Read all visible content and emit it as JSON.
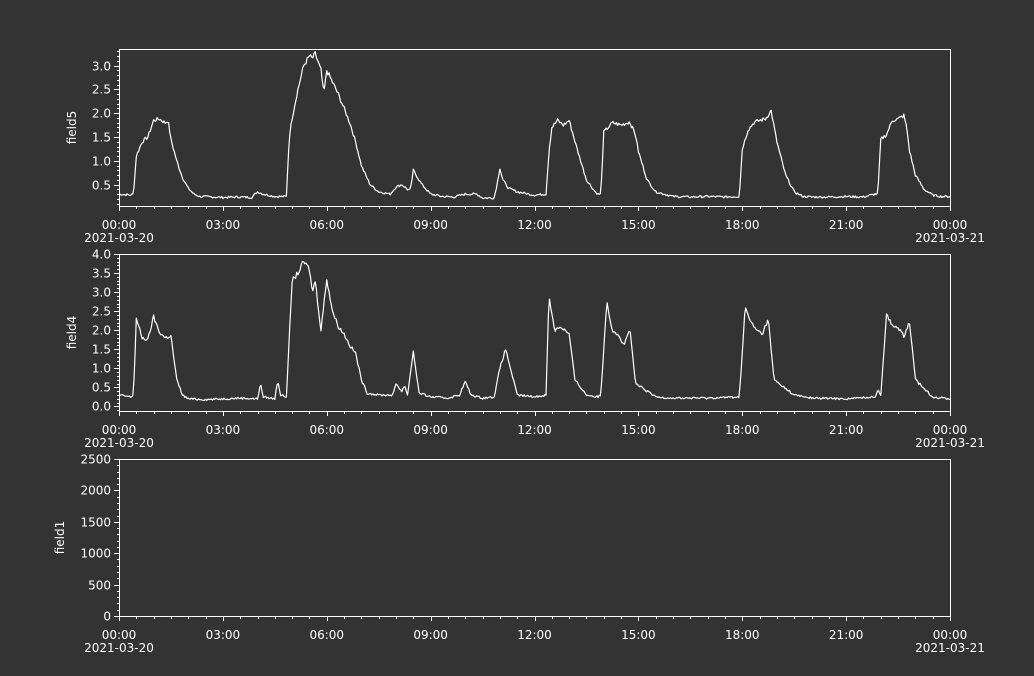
{
  "colors": {
    "background": "#333333",
    "axes": "#ffffff",
    "line": "#ffffff"
  },
  "chart_data": [
    {
      "type": "line",
      "ylabel": "field5",
      "xlim": [
        "2021-03-20 00:00",
        "2021-03-21 00:00"
      ],
      "ylim": [
        0.05,
        3.35
      ],
      "yticks": [
        "0.5",
        "1.0",
        "1.5",
        "2.0",
        "2.5",
        "3.0"
      ],
      "xticks": [
        "00:00",
        "03:00",
        "06:00",
        "09:00",
        "12:00",
        "15:00",
        "18:00",
        "21:00",
        "00:00"
      ],
      "xdates": [
        "2021-03-20",
        "2021-03-21"
      ],
      "grid": false,
      "series": [
        {
          "x": [
            "00:00",
            "00:20",
            "00:25",
            "00:30",
            "00:40",
            "00:50",
            "01:00",
            "01:10",
            "01:20",
            "01:25",
            "01:30",
            "01:40",
            "01:50",
            "02:00",
            "02:10",
            "02:20",
            "02:40",
            "03:00",
            "03:30",
            "03:50",
            "04:00",
            "04:10",
            "04:30",
            "04:50",
            "04:55",
            "05:00",
            "05:10",
            "05:20",
            "05:30",
            "05:35",
            "05:40",
            "05:50",
            "05:55",
            "06:00",
            "06:10",
            "06:20",
            "06:30",
            "06:40",
            "06:50",
            "07:00",
            "07:15",
            "07:30",
            "07:50",
            "08:00",
            "08:10",
            "08:20",
            "08:25",
            "08:30",
            "08:45",
            "09:00",
            "09:20",
            "09:40",
            "10:00",
            "10:20",
            "10:30",
            "10:50",
            "10:55",
            "11:00",
            "11:05",
            "11:15",
            "11:30",
            "11:50",
            "12:00",
            "12:20",
            "12:25",
            "12:30",
            "12:40",
            "12:50",
            "13:00",
            "13:15",
            "13:30",
            "13:45",
            "13:50",
            "13:55",
            "14:00",
            "14:15",
            "14:30",
            "14:45",
            "14:55",
            "15:00",
            "15:15",
            "15:30",
            "16:00",
            "16:30",
            "17:00",
            "17:30",
            "17:55",
            "18:00",
            "18:10",
            "18:20",
            "18:30",
            "18:40",
            "18:50",
            "19:00",
            "19:15",
            "19:30",
            "19:45",
            "20:00",
            "20:30",
            "21:00",
            "21:30",
            "21:50",
            "21:55",
            "22:00",
            "22:10",
            "22:20",
            "22:30",
            "22:40",
            "22:45",
            "22:50",
            "23:00",
            "23:15",
            "23:30",
            "23:45",
            "24:00"
          ],
          "y": [
            0.3,
            0.28,
            0.3,
            1.1,
            1.4,
            1.5,
            1.85,
            1.88,
            1.8,
            1.85,
            1.45,
            1.0,
            0.65,
            0.42,
            0.3,
            0.25,
            0.24,
            0.23,
            0.24,
            0.23,
            0.35,
            0.3,
            0.25,
            0.25,
            1.5,
            1.9,
            2.5,
            3.0,
            3.2,
            3.15,
            3.25,
            2.9,
            2.4,
            2.9,
            2.65,
            2.4,
            2.1,
            1.8,
            1.4,
            0.9,
            0.5,
            0.35,
            0.3,
            0.45,
            0.5,
            0.4,
            0.38,
            0.8,
            0.5,
            0.3,
            0.25,
            0.24,
            0.3,
            0.3,
            0.22,
            0.22,
            0.5,
            0.85,
            0.6,
            0.42,
            0.35,
            0.3,
            0.28,
            0.3,
            1.2,
            1.7,
            1.85,
            1.75,
            1.85,
            1.2,
            0.6,
            0.35,
            0.3,
            0.3,
            1.6,
            1.8,
            1.75,
            1.82,
            1.55,
            1.2,
            0.6,
            0.35,
            0.25,
            0.24,
            0.25,
            0.24,
            0.25,
            1.25,
            1.65,
            1.8,
            1.85,
            1.88,
            2.05,
            1.4,
            0.7,
            0.35,
            0.25,
            0.24,
            0.24,
            0.25,
            0.24,
            0.3,
            0.3,
            1.45,
            1.55,
            1.85,
            1.88,
            1.95,
            1.7,
            1.2,
            0.7,
            0.4,
            0.28,
            0.25,
            0.25
          ]
        }
      ]
    },
    {
      "type": "line",
      "ylabel": "field4",
      "xlim": [
        "2021-03-20 00:00",
        "2021-03-21 00:00"
      ],
      "ylim": [
        -0.12,
        4.0
      ],
      "yticks": [
        "0.0",
        "0.5",
        "1.0",
        "1.5",
        "2.0",
        "2.5",
        "3.0",
        "3.5",
        "4.0"
      ],
      "xticks": [
        "00:00",
        "03:00",
        "06:00",
        "09:00",
        "12:00",
        "15:00",
        "18:00",
        "21:00",
        "00:00"
      ],
      "xdates": [
        "2021-03-20",
        "2021-03-21"
      ],
      "grid": false,
      "series": [
        {
          "x": [
            "00:00",
            "00:20",
            "00:25",
            "00:30",
            "00:40",
            "00:50",
            "01:00",
            "01:10",
            "01:20",
            "01:30",
            "01:40",
            "01:50",
            "02:00",
            "02:30",
            "03:00",
            "03:30",
            "04:00",
            "04:05",
            "04:10",
            "04:30",
            "04:35",
            "04:40",
            "04:50",
            "05:00",
            "05:10",
            "05:20",
            "05:30",
            "05:35",
            "05:40",
            "05:50",
            "06:00",
            "06:10",
            "06:20",
            "06:30",
            "06:40",
            "06:50",
            "07:00",
            "07:10",
            "07:30",
            "07:55",
            "08:00",
            "08:10",
            "08:15",
            "08:20",
            "08:30",
            "08:40",
            "09:00",
            "09:30",
            "09:50",
            "10:00",
            "10:10",
            "10:30",
            "10:50",
            "11:00",
            "11:10",
            "11:30",
            "12:00",
            "12:20",
            "12:25",
            "12:35",
            "12:45",
            "13:00",
            "13:10",
            "13:30",
            "13:50",
            "13:55",
            "14:05",
            "14:15",
            "14:25",
            "14:35",
            "14:45",
            "14:55",
            "15:30",
            "16:00",
            "17:00",
            "17:55",
            "18:05",
            "18:15",
            "18:25",
            "18:35",
            "18:45",
            "18:55",
            "19:30",
            "20:00",
            "21:00",
            "21:50",
            "21:55",
            "22:00",
            "22:10",
            "22:20",
            "22:30",
            "22:40",
            "22:50",
            "23:00",
            "23:30",
            "24:00"
          ],
          "y": [
            0.3,
            0.25,
            0.3,
            2.3,
            1.8,
            1.75,
            2.35,
            1.95,
            1.8,
            1.85,
            0.7,
            0.3,
            0.2,
            0.18,
            0.2,
            0.22,
            0.2,
            0.6,
            0.25,
            0.2,
            0.7,
            0.3,
            0.25,
            3.3,
            3.5,
            3.8,
            3.6,
            3.0,
            3.3,
            2.0,
            3.35,
            2.5,
            2.1,
            1.9,
            1.6,
            1.4,
            0.7,
            0.35,
            0.3,
            0.3,
            0.6,
            0.4,
            0.55,
            0.3,
            1.45,
            0.35,
            0.25,
            0.22,
            0.3,
            0.65,
            0.3,
            0.22,
            0.25,
            1.0,
            1.5,
            0.3,
            0.25,
            0.3,
            2.9,
            2.0,
            2.1,
            1.9,
            0.7,
            0.3,
            0.25,
            0.3,
            2.75,
            2.0,
            1.9,
            1.6,
            2.05,
            0.6,
            0.25,
            0.22,
            0.22,
            0.25,
            2.6,
            2.2,
            2.0,
            1.9,
            2.3,
            0.7,
            0.3,
            0.22,
            0.2,
            0.25,
            0.45,
            0.3,
            2.4,
            2.15,
            2.05,
            1.85,
            2.2,
            0.7,
            0.25,
            0.2
          ]
        }
      ]
    },
    {
      "type": "line",
      "ylabel": "field1",
      "xlim": [
        "2021-03-20 00:00",
        "2021-03-21 00:00"
      ],
      "ylim": [
        0,
        2500
      ],
      "yticks": [
        "0",
        "500",
        "1000",
        "1500",
        "2000",
        "2500"
      ],
      "xticks": [
        "00:00",
        "03:00",
        "06:00",
        "09:00",
        "12:00",
        "15:00",
        "18:00",
        "21:00",
        "00:00"
      ],
      "xdates": [
        "2021-03-20",
        "2021-03-21"
      ],
      "grid": false,
      "series": []
    }
  ]
}
